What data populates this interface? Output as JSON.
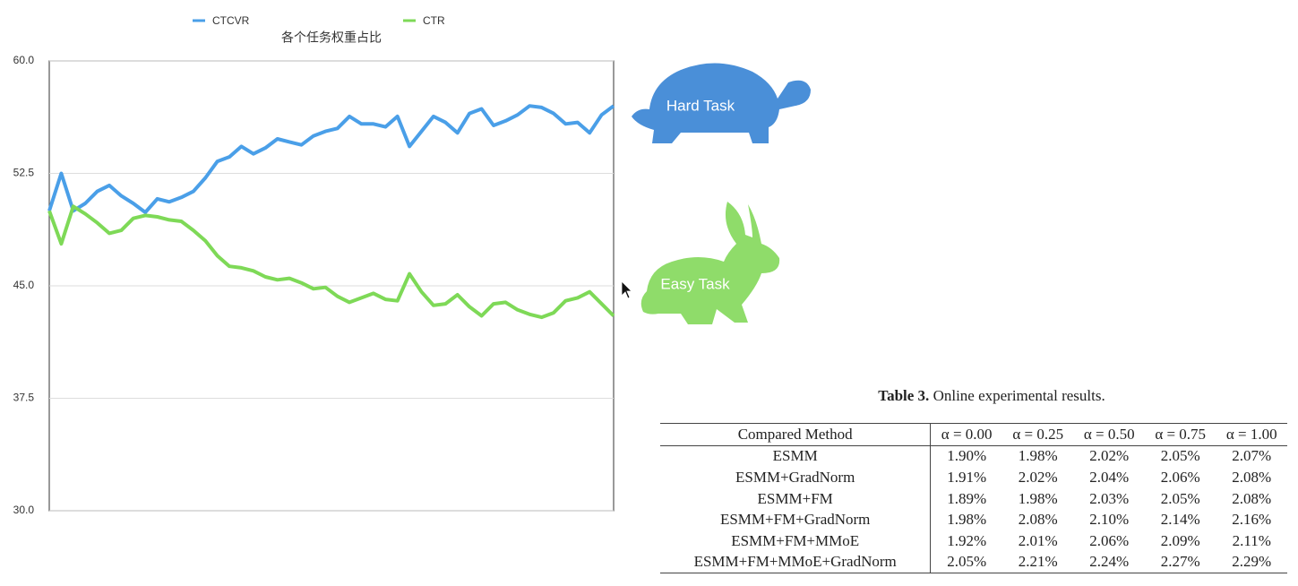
{
  "chart_data": {
    "type": "line",
    "title": "各个任务权重占比",
    "categories": [
      null,
      null,
      null,
      null,
      null,
      null,
      null,
      null,
      null,
      null,
      null,
      null,
      null,
      null,
      null,
      null,
      null,
      null,
      null,
      null,
      null,
      null,
      null,
      null,
      null,
      null,
      null,
      null,
      null,
      null,
      null,
      null,
      null,
      null,
      null,
      null,
      null,
      null,
      null,
      null,
      null,
      null,
      null,
      null,
      null,
      null,
      null,
      null
    ],
    "series": [
      {
        "name": "CTCVR",
        "color": "#4a9fe8",
        "values": [
          50.0,
          52.5,
          50.0,
          50.5,
          51.3,
          51.7,
          51.0,
          50.5,
          49.9,
          50.8,
          50.6,
          50.9,
          51.3,
          52.2,
          53.3,
          53.6,
          54.3,
          53.8,
          54.2,
          54.8,
          54.6,
          54.4,
          55.0,
          55.3,
          55.5,
          56.3,
          55.8,
          55.8,
          55.6,
          56.3,
          54.3,
          55.3,
          56.3,
          55.9,
          55.2,
          56.5,
          56.8,
          55.7,
          56.0,
          56.4,
          57.0,
          56.9,
          56.5,
          55.8,
          55.9,
          55.2,
          56.4,
          57.0
        ]
      },
      {
        "name": "CTR",
        "color": "#7ed957",
        "values": [
          50.0,
          47.8,
          50.3,
          49.8,
          49.2,
          48.5,
          48.7,
          49.5,
          49.7,
          49.6,
          49.4,
          49.3,
          48.7,
          48.0,
          47.0,
          46.3,
          46.2,
          46.0,
          45.6,
          45.4,
          45.5,
          45.2,
          44.8,
          44.9,
          44.3,
          43.9,
          44.2,
          44.5,
          44.1,
          44.0,
          45.8,
          44.6,
          43.7,
          43.8,
          44.4,
          43.6,
          43.0,
          43.8,
          43.9,
          43.4,
          43.1,
          42.9,
          43.2,
          44.0,
          44.2,
          44.6,
          43.8,
          43.0
        ]
      }
    ],
    "ylim": [
      30,
      60
    ],
    "yticks": [
      {
        "value": 30,
        "label": "30.0"
      },
      {
        "value": 37.5,
        "label": "37.5"
      },
      {
        "value": 45,
        "label": "45.0"
      },
      {
        "value": 52.5,
        "label": "52.5"
      },
      {
        "value": 60,
        "label": "60.0"
      }
    ],
    "grid": true,
    "annotations": [
      "Hard Task",
      "Easy Task"
    ]
  },
  "table": {
    "caption_label": "Table 3.",
    "caption": "Online experimental results.",
    "header": [
      "Compared Method",
      "α = 0.00",
      "α = 0.25",
      "α = 0.50",
      "α = 0.75",
      "α = 1.00"
    ],
    "rows": [
      [
        "ESMM",
        "1.90%",
        "1.98%",
        "2.02%",
        "2.05%",
        "2.07%"
      ],
      [
        "ESMM+GradNorm",
        "1.91%",
        "2.02%",
        "2.04%",
        "2.06%",
        "2.08%"
      ],
      [
        "ESMM+FM",
        "1.89%",
        "1.98%",
        "2.03%",
        "2.05%",
        "2.08%"
      ],
      [
        "ESMM+FM+GradNorm",
        "1.98%",
        "2.08%",
        "2.10%",
        "2.14%",
        "2.16%"
      ],
      [
        "ESMM+FM+MMoE",
        "1.92%",
        "2.01%",
        "2.06%",
        "2.09%",
        "2.11%"
      ],
      [
        "ESMM+FM+MMoE+GradNorm",
        "2.05%",
        "2.21%",
        "2.24%",
        "2.27%",
        "2.29%"
      ]
    ]
  }
}
